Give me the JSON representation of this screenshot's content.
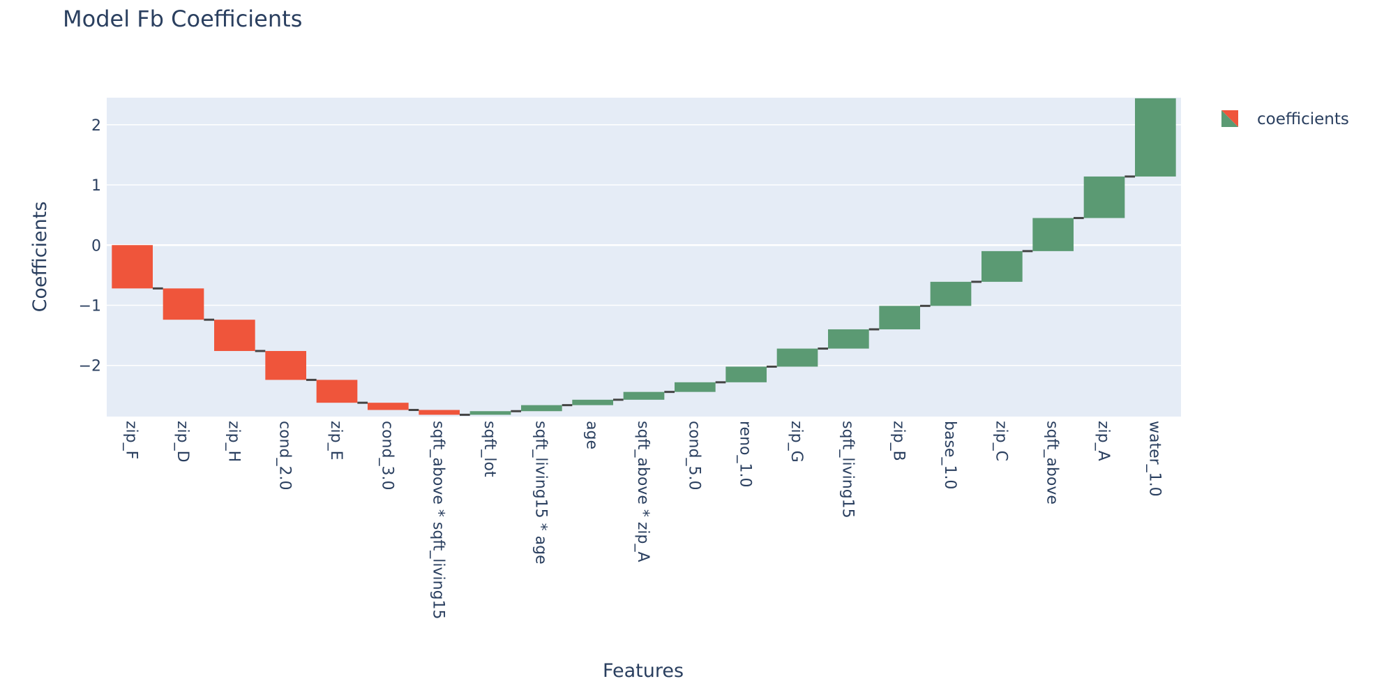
{
  "chart_data": {
    "type": "waterfall",
    "title": "Model Fb Coefficients",
    "xlabel": "Features",
    "ylabel": "Coefficients",
    "legend": {
      "entries": [
        "coefficients"
      ],
      "position": "top-right"
    },
    "ylim": [
      -2.85,
      2.45
    ],
    "yticks": [
      2,
      1,
      0,
      -1,
      -2
    ],
    "ytick_labels": [
      "2",
      "1",
      "0",
      "−1",
      "−2"
    ],
    "grid": true,
    "colors": {
      "decreasing": "#ef553b",
      "increasing": "#5b9a73",
      "connector": "#444444",
      "plot_bg": "#e5ecf6",
      "grid": "#ffffff",
      "text": "#2a3f5f"
    },
    "categories": [
      "zip_F",
      "zip_D",
      "zip_H",
      "cond_2.0",
      "zip_E",
      "cond_3.0",
      "sqft_above * sqft_living15",
      "sqft_lot",
      "sqft_living15 * age",
      "age",
      "sqft_above * zip_A",
      "cond_5.0",
      "reno_1.0",
      "zip_G",
      "sqft_living15",
      "zip_B",
      "base_1.0",
      "zip_C",
      "sqft_above",
      "zip_A",
      "water_1.0"
    ],
    "values": [
      -0.72,
      -0.52,
      -0.52,
      -0.48,
      -0.38,
      -0.12,
      -0.08,
      0.06,
      0.1,
      0.09,
      0.13,
      0.16,
      0.26,
      0.3,
      0.32,
      0.39,
      0.4,
      0.51,
      0.55,
      0.69,
      1.3
    ]
  }
}
